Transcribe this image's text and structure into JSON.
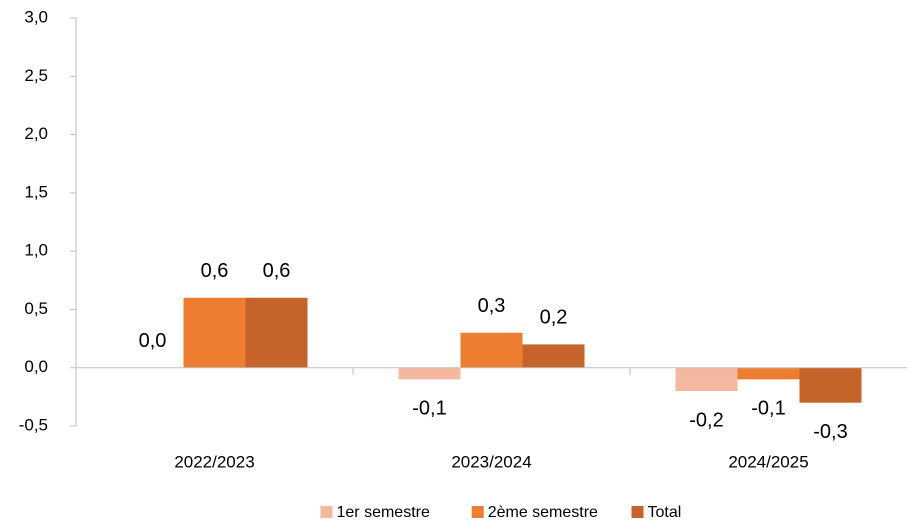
{
  "chart_data": {
    "type": "bar",
    "categories": [
      "2022/2023",
      "2023/2024",
      "2024/2025"
    ],
    "series": [
      {
        "name": "1er semestre",
        "color": "#f4b8a0",
        "values": [
          0.0,
          -0.1,
          -0.2
        ],
        "value_labels": [
          "0,0",
          "-0,1",
          "-0,2"
        ]
      },
      {
        "name": "2ème semestre",
        "color": "#ed7d31",
        "values": [
          0.6,
          0.3,
          -0.1
        ],
        "value_labels": [
          "0,6",
          "0,3",
          "-0,1"
        ]
      },
      {
        "name": "Total",
        "color": "#c5632a",
        "values": [
          0.6,
          0.2,
          -0.3
        ],
        "value_labels": [
          "0,6",
          "0,2",
          "-0,3"
        ]
      }
    ],
    "ylim": [
      -0.5,
      3.0
    ],
    "yticks": [
      {
        "value": -0.5,
        "label": "-0,5"
      },
      {
        "value": 0,
        "label": "0,0"
      },
      {
        "value": 0.5,
        "label": "0,5"
      },
      {
        "value": 1.0,
        "label": "1,0"
      },
      {
        "value": 1.5,
        "label": "1,5"
      },
      {
        "value": 2.0,
        "label": "2,0"
      },
      {
        "value": 2.5,
        "label": "2,5"
      },
      {
        "value": 3.0,
        "label": "3,0"
      }
    ],
    "grid": false,
    "legend": "bottom"
  }
}
